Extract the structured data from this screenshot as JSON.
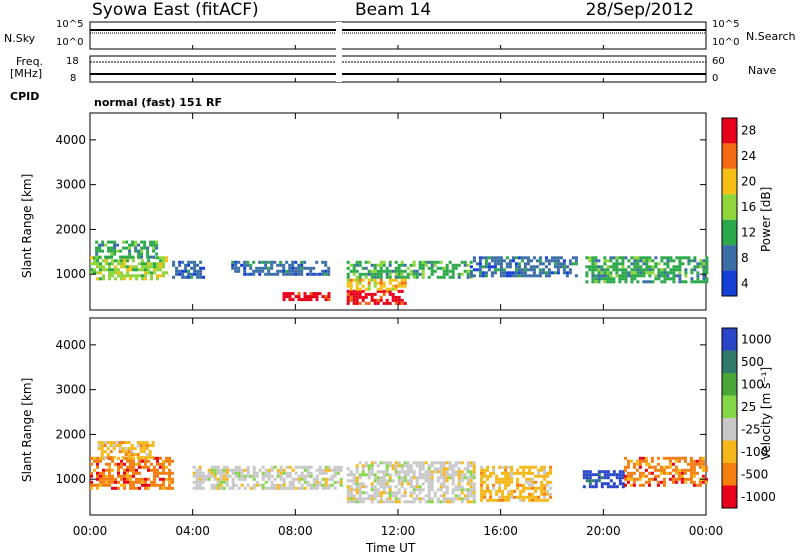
{
  "header": {
    "site": "Syowa East (fitACF)",
    "beam": "Beam 14",
    "date": "28/Sep/2012"
  },
  "noise_panel": {
    "left_label": "N.Sky",
    "right_label": "N.Search",
    "ticks_left": [
      "10^5",
      "10^0"
    ],
    "ticks_right": [
      "10^5",
      "10^0"
    ]
  },
  "freq_panel": {
    "left_label_1": "Freq.",
    "left_label_2": "[MHz]",
    "ticks_left": [
      "18",
      "8"
    ],
    "right_label": "Nave",
    "ticks_right": [
      "60",
      "0"
    ]
  },
  "cpid": {
    "label": "CPID",
    "value": "normal (fast) 151 RF"
  },
  "colorbars": {
    "power": {
      "title": "Power [dB]",
      "ticks": [
        "28",
        "24",
        "20",
        "16",
        "12",
        "8",
        "4"
      ],
      "colors": [
        "#e8001a",
        "#f46a12",
        "#f5c013",
        "#8fd63a",
        "#2aa84a",
        "#3b6ea5",
        "#1540d8"
      ]
    },
    "velocity": {
      "title": "Velocity [m s⁻¹]",
      "ticks": [
        "1000",
        "500",
        "100",
        "25",
        "-25",
        "-100",
        "-500",
        "-1000"
      ],
      "colors": [
        "#2a46c8",
        "#2f7a6a",
        "#4aa83a",
        "#86d64a",
        "#c8c8c8",
        "#f5b818",
        "#f47e10",
        "#e8001a"
      ]
    }
  },
  "chart_data": [
    {
      "type": "heatmap",
      "name": "power",
      "ylabel": "Slant Range [km]",
      "xlim_hours": [
        0,
        24
      ],
      "ylim_km": [
        200,
        4600
      ],
      "yticks": [
        "4000",
        "3000",
        "2000",
        "1000"
      ],
      "xticks": [
        "00:00",
        "04:00",
        "08:00",
        "12:00",
        "16:00",
        "20:00",
        "00:00"
      ],
      "blocks": [
        {
          "t0": 0.0,
          "t1": 3.0,
          "r0": 900,
          "r1": 1400,
          "c": 3
        },
        {
          "t0": 0.2,
          "t1": 2.6,
          "r0": 1400,
          "r1": 1750,
          "c": 4
        },
        {
          "t0": 3.2,
          "t1": 4.4,
          "r0": 900,
          "r1": 1300,
          "c": 5
        },
        {
          "t0": 5.5,
          "t1": 9.3,
          "r0": 1000,
          "r1": 1300,
          "c": 5
        },
        {
          "t0": 7.5,
          "t1": 9.3,
          "r0": 400,
          "r1": 600,
          "c": 0
        },
        {
          "t0": 10.0,
          "t1": 14.8,
          "r0": 950,
          "r1": 1300,
          "c": 4
        },
        {
          "t0": 10.0,
          "t1": 12.3,
          "r0": 350,
          "r1": 650,
          "c": 0
        },
        {
          "t0": 10.0,
          "t1": 12.3,
          "r0": 650,
          "r1": 900,
          "c": 2
        },
        {
          "t0": 14.8,
          "t1": 19.0,
          "r0": 950,
          "r1": 1400,
          "c": 5
        },
        {
          "t0": 19.3,
          "t1": 24.0,
          "r0": 850,
          "r1": 1400,
          "c": 4
        }
      ]
    },
    {
      "type": "heatmap",
      "name": "velocity",
      "ylabel": "Slant Range [km]",
      "xlabel": "Time UT",
      "xlim_hours": [
        0,
        24
      ],
      "ylim_km": [
        200,
        4600
      ],
      "yticks": [
        "4000",
        "3000",
        "2000",
        "1000"
      ],
      "xticks": [
        "00:00",
        "04:00",
        "08:00",
        "12:00",
        "16:00",
        "20:00",
        "00:00"
      ],
      "blocks": [
        {
          "t0": 0.0,
          "t1": 3.2,
          "r0": 800,
          "r1": 1500,
          "c": 6
        },
        {
          "t0": 0.3,
          "t1": 2.5,
          "r0": 1500,
          "r1": 1850,
          "c": 5
        },
        {
          "t0": 4.0,
          "t1": 9.8,
          "r0": 800,
          "r1": 1300,
          "c": 4
        },
        {
          "t0": 10.0,
          "t1": 15.0,
          "r0": 500,
          "r1": 1400,
          "c": 4
        },
        {
          "t0": 15.2,
          "t1": 18.0,
          "r0": 500,
          "r1": 1300,
          "c": 5
        },
        {
          "t0": 19.2,
          "t1": 20.8,
          "r0": 850,
          "r1": 1200,
          "c": 0
        },
        {
          "t0": 20.8,
          "t1": 24.0,
          "r0": 850,
          "r1": 1500,
          "c": 6
        }
      ]
    }
  ]
}
